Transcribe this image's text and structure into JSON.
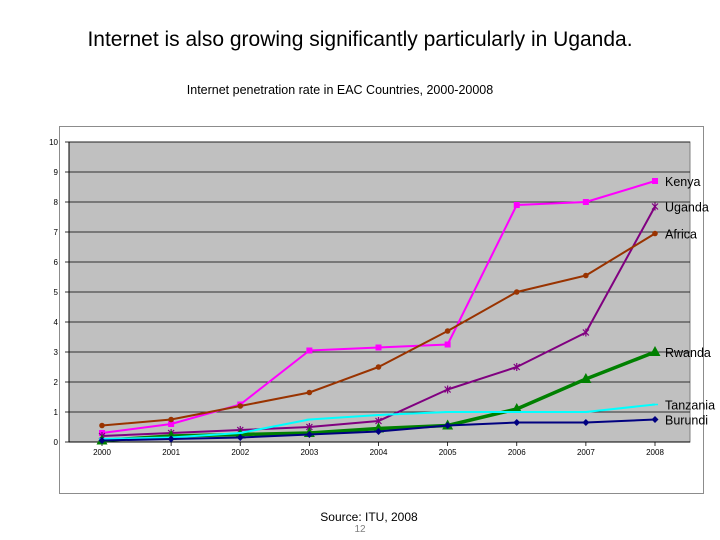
{
  "slide": {
    "title": "Internet is also growing significantly particularly in Uganda.",
    "source": "Source: ITU, 2008",
    "page_number": "12"
  },
  "chart_data": {
    "type": "line",
    "title": "Internet penetration rate in EAC Countries, 2000-20008",
    "xlabel": "",
    "ylabel": "",
    "categories": [
      "2000",
      "2001",
      "2002",
      "2003",
      "2004",
      "2005",
      "2006",
      "2007",
      "2008"
    ],
    "ylim": [
      0,
      10
    ],
    "yticks": [
      "0",
      "1",
      "2",
      "3",
      "4",
      "5",
      "6",
      "7",
      "8",
      "9",
      "10"
    ],
    "grid": true,
    "plot_background": "#c0c0c0",
    "legend": "inline labels at right end of each line",
    "series": [
      {
        "name": "Kenya",
        "color": "#ff00ff",
        "marker": "square",
        "values": [
          0.3,
          0.6,
          1.25,
          3.05,
          3.15,
          3.25,
          7.9,
          8.0,
          8.7
        ]
      },
      {
        "name": "Uganda",
        "color": "#800080",
        "marker": "star",
        "values": [
          0.2,
          0.3,
          0.4,
          0.5,
          0.7,
          1.75,
          2.5,
          3.65,
          7.85
        ]
      },
      {
        "name": "Africa",
        "color": "#993300",
        "marker": "circle",
        "values": [
          0.55,
          0.75,
          1.2,
          1.65,
          2.5,
          3.7,
          5.0,
          5.55,
          6.95
        ]
      },
      {
        "name": "Rwanda",
        "color": "#008000",
        "marker": "triangle",
        "values": [
          0.05,
          0.2,
          0.25,
          0.3,
          0.45,
          0.55,
          1.1,
          2.1,
          3.0
        ]
      },
      {
        "name": "Tanzania",
        "color": "#00ffff",
        "marker": "line",
        "values": [
          0.1,
          0.15,
          0.3,
          0.75,
          0.9,
          1.0,
          1.0,
          1.0,
          1.25
        ]
      },
      {
        "name": "Burundi",
        "color": "#000080",
        "marker": "diamond",
        "values": [
          0.05,
          0.1,
          0.15,
          0.25,
          0.35,
          0.55,
          0.65,
          0.65,
          0.75
        ]
      }
    ]
  }
}
